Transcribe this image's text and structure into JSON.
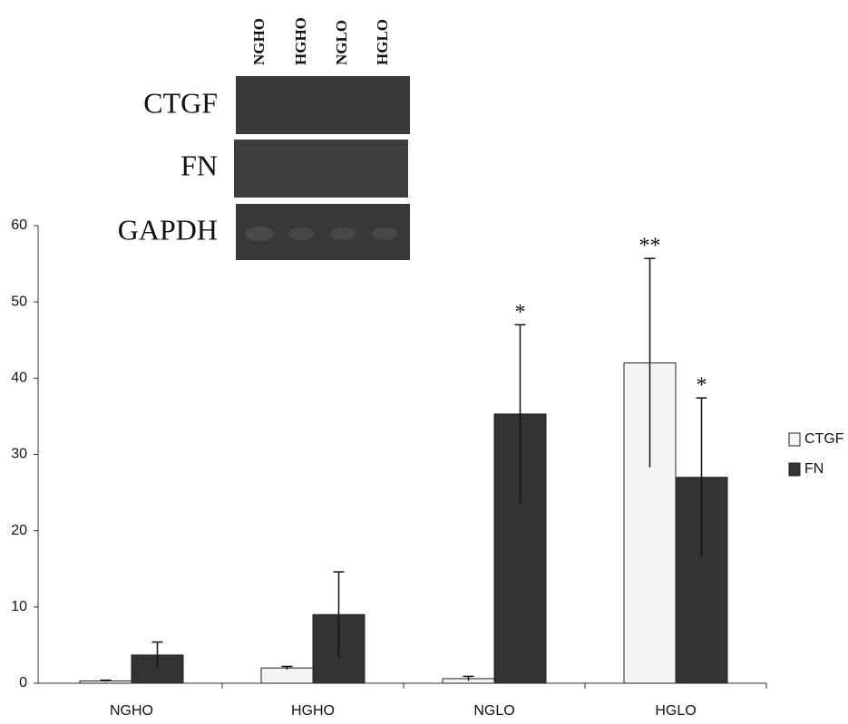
{
  "chart_data": {
    "type": "bar",
    "categories": [
      "NGHO",
      "HGHO",
      "NGLO",
      "HGLO"
    ],
    "series": [
      {
        "name": "CTGF",
        "color": "#f4f4f4",
        "values": [
          0.3,
          2,
          0.6,
          42
        ],
        "errors": [
          0.1,
          0.2,
          0.3,
          13.7
        ],
        "significance": [
          null,
          null,
          null,
          "**"
        ]
      },
      {
        "name": "FN",
        "color": "#333333",
        "values": [
          3.7,
          9,
          35.3,
          27
        ],
        "errors": [
          1.7,
          5.6,
          11.7,
          10.4
        ],
        "significance": [
          null,
          null,
          "*",
          "*"
        ]
      }
    ],
    "ylim": [
      0,
      60
    ],
    "yticks": [
      0,
      10,
      20,
      30,
      40,
      50,
      60
    ],
    "grid": false,
    "legend": "right"
  },
  "inset": {
    "lanes": [
      "NGHO",
      "HGHO",
      "NGLO",
      "HGLO"
    ],
    "rows": [
      "CTGF",
      "FN",
      "GAPDH"
    ]
  }
}
